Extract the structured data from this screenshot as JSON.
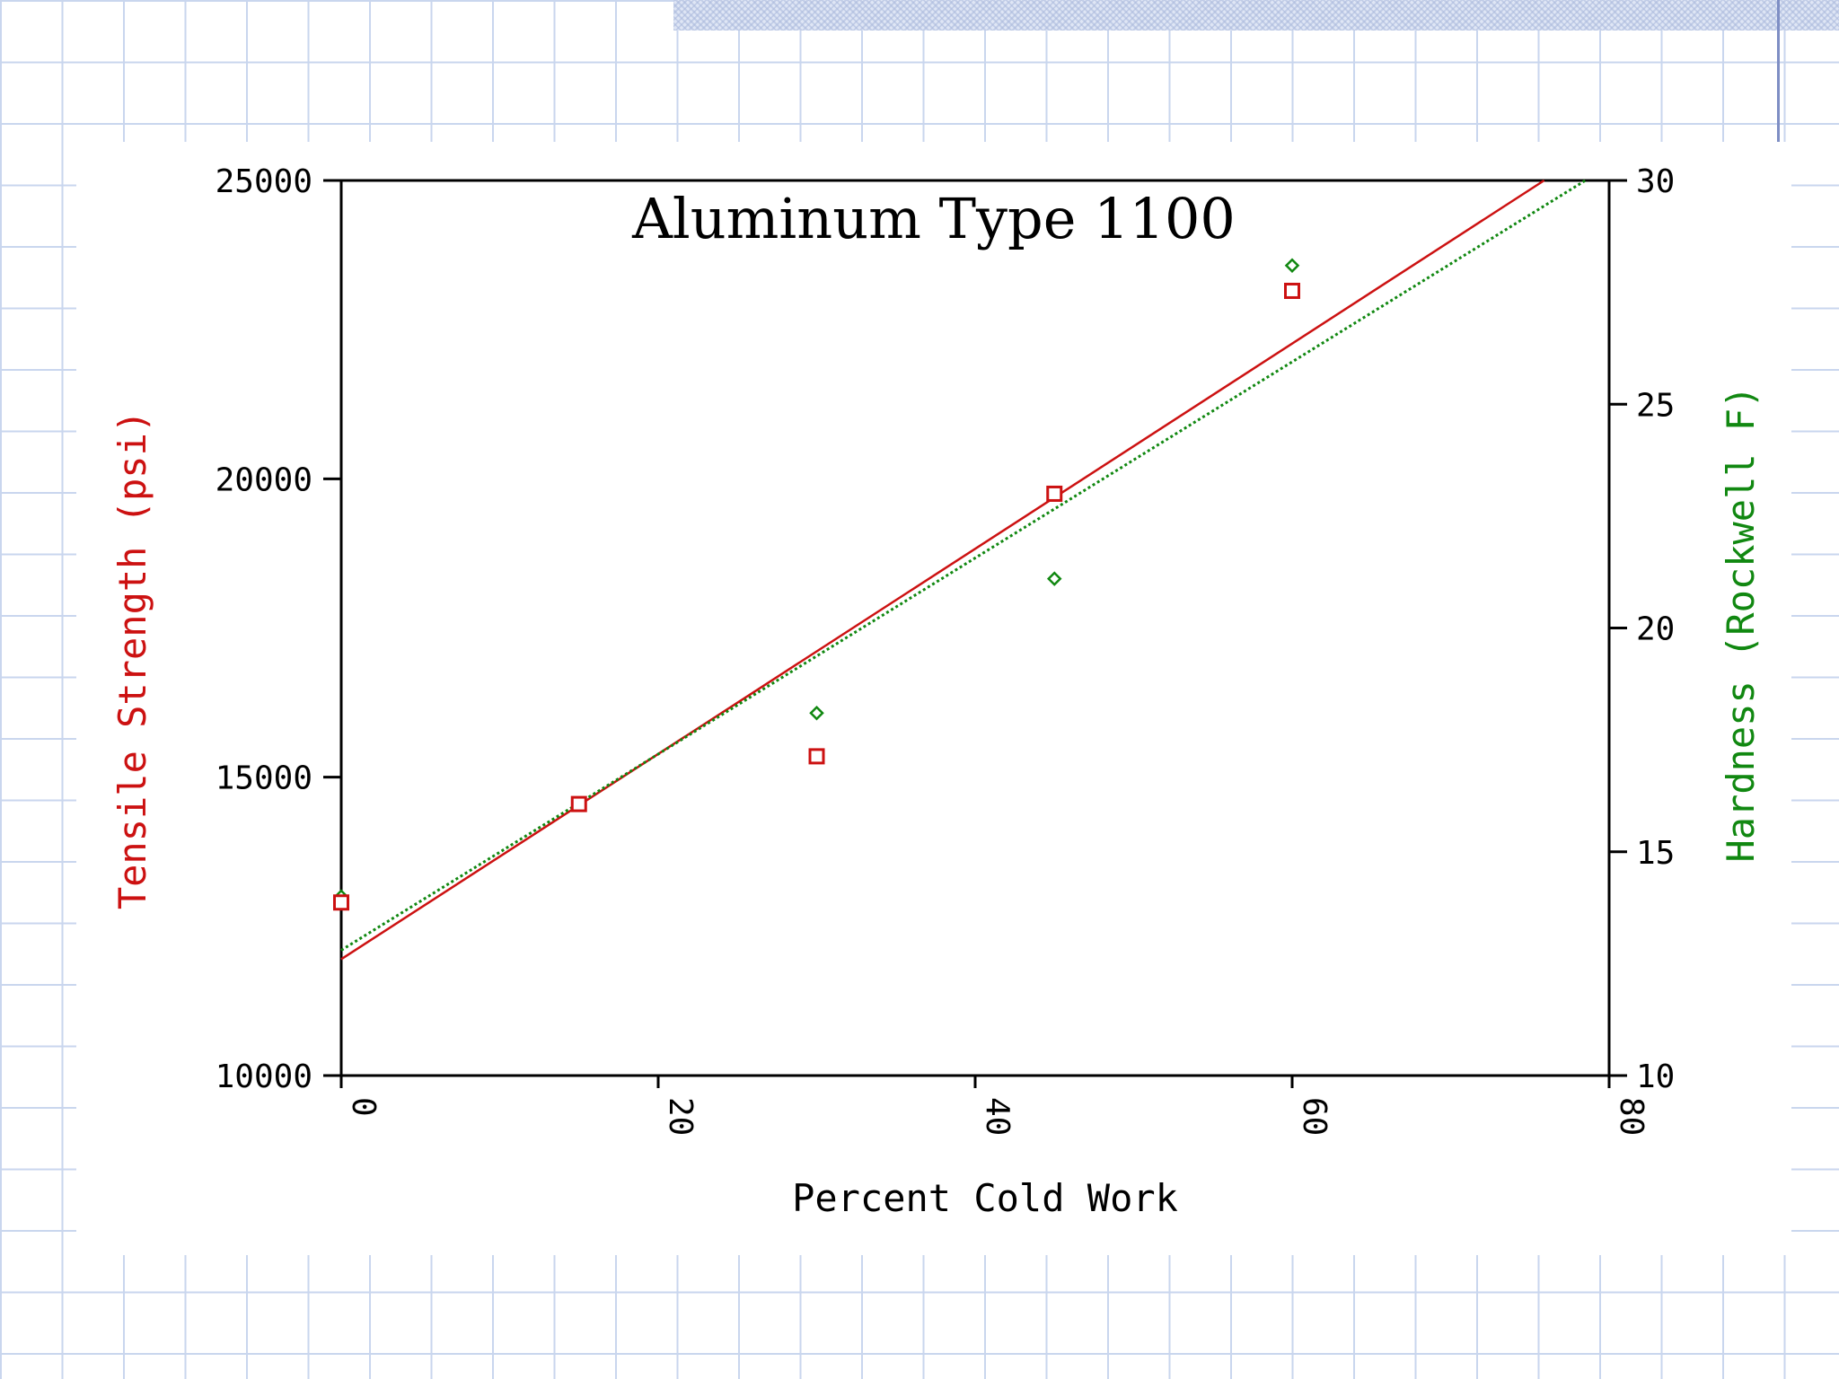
{
  "chart_data": {
    "type": "scatter",
    "title": "Aluminum Type 1100",
    "xlabel": "Percent Cold Work",
    "ylabel_left": "Tensile Strength (psi)",
    "ylabel_right": "Hardness (Rockwell F)",
    "xlim": [
      0,
      80
    ],
    "ylim_left": [
      10000,
      25000
    ],
    "ylim_right": [
      10,
      30
    ],
    "x_ticks": [
      "0",
      "20",
      "40",
      "60",
      "80"
    ],
    "y_ticks_left": [
      "10000",
      "15000",
      "20000",
      "25000"
    ],
    "y_ticks_right": [
      "10",
      "15",
      "20",
      "25",
      "30"
    ],
    "grid": false,
    "series": [
      {
        "axis": "left",
        "color": "#cc1111",
        "marker": "square",
        "x": [
          0,
          15,
          30,
          45,
          60
        ],
        "y": [
          12900,
          14550,
          15350,
          19750,
          23150
        ],
        "fit": {
          "style": "solid",
          "x": [
            0,
            75.9
          ],
          "y": [
            11950,
            25000
          ]
        }
      },
      {
        "axis": "right",
        "color": "#118811",
        "marker": "diamond",
        "x": [
          0,
          30,
          45,
          60
        ],
        "y": [
          14.0,
          18.1,
          21.1,
          28.1
        ],
        "fit": {
          "style": "dotted",
          "x": [
            0,
            78.5
          ],
          "y": [
            12.8,
            30
          ]
        }
      }
    ]
  }
}
